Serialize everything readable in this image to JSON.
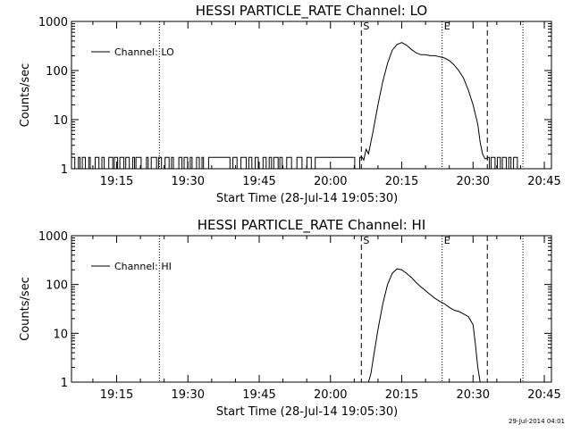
{
  "timestamp": "29-Jul-2014 04:01",
  "chart_data": [
    {
      "type": "line",
      "title": "HESSI PARTICLE_RATE Channel: LO",
      "xlabel": "Start Time (28-Jul-14 19:05:30)",
      "ylabel": "Counts/sec",
      "yscale": "log",
      "ylim": [
        1,
        1000
      ],
      "xlim": [
        "19:05:30",
        "20:46:30"
      ],
      "x_ticks": [
        "19:15",
        "19:30",
        "19:45",
        "20:00",
        "20:15",
        "20:30",
        "20:45"
      ],
      "y_ticks": [
        "1",
        "10",
        "100",
        "1000"
      ],
      "legend": {
        "label": "Channel: LO",
        "placement": "top-left"
      },
      "markers": [
        {
          "label": "S",
          "time": "20:06:30",
          "style": "dashed"
        },
        {
          "label": "E",
          "time": "20:23:30",
          "style": "dotted"
        },
        {
          "label": "",
          "time": "20:33:00",
          "style": "dashed"
        },
        {
          "label": "",
          "time": "19:24:00",
          "style": "dotted"
        },
        {
          "label": "",
          "time": "20:40:30",
          "style": "dotted"
        }
      ],
      "series": [
        {
          "name": "Channel: LO",
          "x": [
            "20:06:30",
            "20:07:00",
            "20:07:30",
            "20:08:00",
            "20:09:00",
            "20:10:00",
            "20:11:00",
            "20:12:00",
            "20:13:00",
            "20:14:00",
            "20:15:00",
            "20:16:00",
            "20:17:00",
            "20:18:00",
            "20:19:00",
            "20:20:00",
            "20:21:00",
            "20:22:00",
            "20:23:00",
            "20:24:00",
            "20:25:00",
            "20:26:00",
            "20:27:00",
            "20:28:00",
            "20:29:00",
            "20:30:00",
            "20:31:00",
            "20:31:30",
            "20:32:00",
            "20:32:30",
            "20:33:00"
          ],
          "y": [
            1.8,
            1.5,
            2.5,
            2,
            6,
            20,
            60,
            140,
            260,
            340,
            370,
            330,
            270,
            230,
            210,
            210,
            200,
            200,
            190,
            180,
            160,
            130,
            100,
            70,
            40,
            20,
            8,
            3.5,
            2,
            1.6,
            1.6
          ]
        }
      ],
      "baseline_toggle": {
        "start": "19:05:30",
        "end": "20:06:30",
        "high": 1.7,
        "low": 1.0,
        "base": 1.7
      }
    },
    {
      "type": "line",
      "title": "HESSI PARTICLE_RATE Channel: HI",
      "xlabel": "Start Time (28-Jul-14 19:05:30)",
      "ylabel": "Counts/sec",
      "yscale": "log",
      "ylim": [
        1,
        1000
      ],
      "xlim": [
        "19:05:30",
        "20:46:30"
      ],
      "x_ticks": [
        "19:15",
        "19:30",
        "19:45",
        "20:00",
        "20:15",
        "20:30",
        "20:45"
      ],
      "y_ticks": [
        "1",
        "10",
        "100",
        "1000"
      ],
      "legend": {
        "label": "Channel: HI",
        "placement": "top-left"
      },
      "markers": [
        {
          "label": "S",
          "time": "20:06:30",
          "style": "dashed"
        },
        {
          "label": "E",
          "time": "20:23:30",
          "style": "dotted"
        },
        {
          "label": "",
          "time": "20:33:00",
          "style": "dashed"
        },
        {
          "label": "",
          "time": "19:24:00",
          "style": "dotted"
        },
        {
          "label": "",
          "time": "20:40:30",
          "style": "dotted"
        }
      ],
      "series": [
        {
          "name": "Channel: HI",
          "x": [
            "20:08:00",
            "20:08:30",
            "20:09:00",
            "20:10:00",
            "20:11:00",
            "20:12:00",
            "20:13:00",
            "20:14:00",
            "20:15:00",
            "20:16:00",
            "20:17:00",
            "20:18:00",
            "20:19:00",
            "20:20:00",
            "20:21:00",
            "20:22:00",
            "20:23:00",
            "20:24:00",
            "20:25:00",
            "20:26:00",
            "20:27:00",
            "20:28:00",
            "20:29:00",
            "20:30:00",
            "20:30:30",
            "20:31:00",
            "20:31:30"
          ],
          "y": [
            1,
            1.5,
            3,
            12,
            40,
            100,
            170,
            210,
            200,
            170,
            140,
            110,
            90,
            75,
            62,
            52,
            45,
            40,
            34,
            30,
            28,
            25,
            22,
            15,
            6,
            2,
            1
          ]
        }
      ]
    }
  ]
}
